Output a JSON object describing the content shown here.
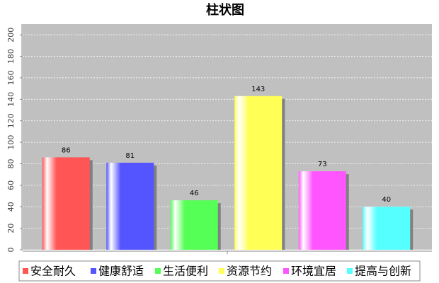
{
  "chart_data": {
    "type": "bar",
    "title": "柱状图",
    "categories": [
      "安全耐久",
      "健康舒适",
      "生活便利",
      "资源节约",
      "环境宜居",
      "提高与创新"
    ],
    "values": [
      86,
      81,
      46,
      143,
      73,
      40
    ],
    "colors": [
      "#ff5555",
      "#5555ff",
      "#55ff55",
      "#ffff55",
      "#ff55ff",
      "#55ffff"
    ],
    "ylim": [
      0,
      210
    ],
    "yticks": [
      0,
      20,
      40,
      60,
      80,
      100,
      120,
      140,
      160,
      180,
      200
    ],
    "grid": true,
    "legend": "bottom"
  }
}
